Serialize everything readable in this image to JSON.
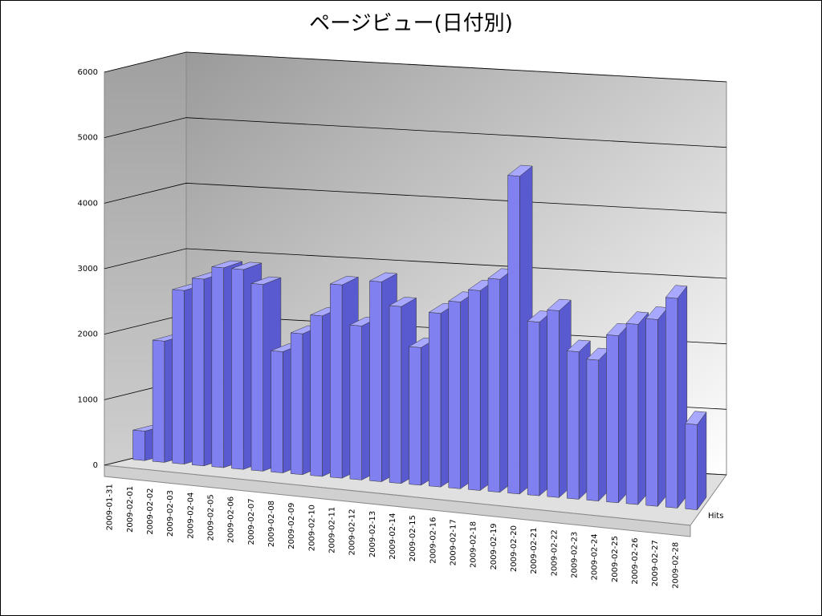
{
  "chart_data": {
    "type": "bar",
    "title": "ページビュー(日付別)",
    "categories": [
      "2009-01-31",
      "2009-02-01",
      "2009-02-02",
      "2009-02-03",
      "2009-02-04",
      "2009-02-05",
      "2009-02-06",
      "2009-02-07",
      "2009-02-08",
      "2009-02-09",
      "2009-02-10",
      "2009-02-11",
      "2009-02-12",
      "2009-02-13",
      "2009-02-14",
      "2009-02-15",
      "2009-02-16",
      "2009-02-17",
      "2009-02-18",
      "2009-02-19",
      "2009-02-20",
      "2009-02-21",
      "2009-02-22",
      "2009-02-23",
      "2009-02-24",
      "2009-02-25",
      "2009-02-26",
      "2009-02-27",
      "2009-02-28"
    ],
    "series": [
      {
        "name": "Hits",
        "color": "#8080f0",
        "values": [
          450,
          1850,
          2650,
          2850,
          3050,
          3050,
          2850,
          1850,
          2150,
          2450,
          2950,
          2350,
          3050,
          2700,
          2100,
          2650,
          2850,
          3050,
          3250,
          4850,
          2650,
          2850,
          2250,
          2150,
          2550,
          2750,
          2850,
          3200,
          1300
        ]
      }
    ],
    "ylim": [
      0,
      6000
    ],
    "yticks": [
      0,
      1000,
      2000,
      3000,
      4000,
      5000,
      6000
    ],
    "grid": true
  }
}
